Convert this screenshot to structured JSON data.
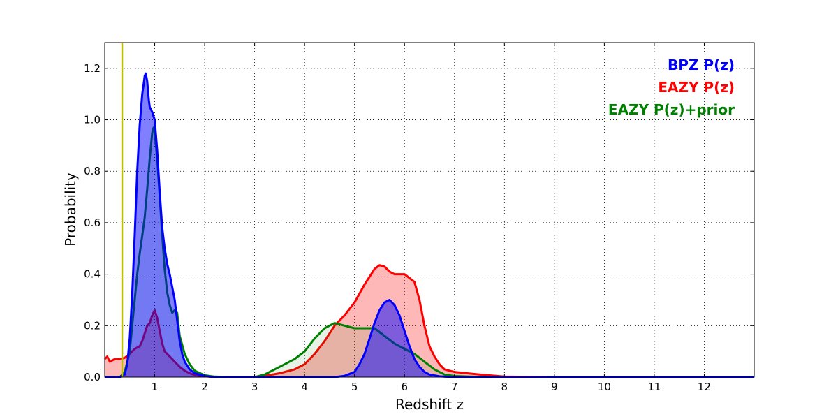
{
  "chart_data": {
    "type": "area",
    "xlabel": "Redshift z",
    "ylabel": "Probability",
    "xlim": [
      0,
      13
    ],
    "ylim": [
      0,
      1.3
    ],
    "x_ticks": [
      1,
      2,
      3,
      4,
      5,
      6,
      7,
      8,
      9,
      10,
      11,
      12
    ],
    "x_tick_labels": [
      "1",
      "2",
      "3",
      "4",
      "5",
      "6",
      "7",
      "8",
      "9",
      "10",
      "11",
      "12"
    ],
    "y_ticks": [
      0,
      0.2,
      0.4,
      0.6,
      0.8,
      1.0,
      1.2
    ],
    "y_tick_labels": [
      "0.0",
      "0.2",
      "0.4",
      "0.6",
      "0.8",
      "1.0",
      "1.2"
    ],
    "grid": true,
    "legend_position": "top-right",
    "vertical_line": {
      "x": 0.35,
      "color": "#bfbf00"
    },
    "series": [
      {
        "name": "EAZY P(z)",
        "color": "#ff0000",
        "fill": "#ff0000",
        "fill_opacity": 0.28,
        "x": [
          0,
          0.05,
          0.1,
          0.15,
          0.2,
          0.3,
          0.4,
          0.5,
          0.6,
          0.7,
          0.75,
          0.8,
          0.85,
          0.9,
          0.95,
          1.0,
          1.05,
          1.1,
          1.15,
          1.2,
          1.3,
          1.4,
          1.5,
          1.6,
          1.7,
          1.8,
          2.0,
          2.2,
          2.5,
          3.0,
          3.2,
          3.5,
          3.8,
          4.0,
          4.2,
          4.4,
          4.6,
          4.8,
          5.0,
          5.2,
          5.4,
          5.5,
          5.6,
          5.7,
          5.8,
          6.0,
          6.2,
          6.3,
          6.4,
          6.5,
          6.6,
          6.7,
          6.8,
          6.9,
          7.0,
          7.5,
          8.0,
          9.0,
          10,
          11,
          12,
          13
        ],
        "values": [
          0.07,
          0.08,
          0.06,
          0.065,
          0.07,
          0.07,
          0.075,
          0.09,
          0.11,
          0.12,
          0.14,
          0.17,
          0.2,
          0.21,
          0.24,
          0.26,
          0.23,
          0.18,
          0.13,
          0.1,
          0.08,
          0.06,
          0.04,
          0.025,
          0.015,
          0.008,
          0.003,
          0.001,
          0.0,
          0.0,
          0.005,
          0.015,
          0.03,
          0.05,
          0.09,
          0.14,
          0.2,
          0.24,
          0.29,
          0.36,
          0.42,
          0.435,
          0.43,
          0.41,
          0.4,
          0.4,
          0.37,
          0.3,
          0.2,
          0.12,
          0.08,
          0.05,
          0.03,
          0.025,
          0.02,
          0.01,
          0.002,
          0.0,
          0.0,
          0.0,
          0.0,
          0.0
        ]
      },
      {
        "name": "EAZY P(z)+prior",
        "color": "#008000",
        "fill": "#008000",
        "fill_opacity": 0.1,
        "x": [
          0,
          0.3,
          0.4,
          0.5,
          0.55,
          0.6,
          0.65,
          0.7,
          0.75,
          0.8,
          0.85,
          0.9,
          0.95,
          0.98,
          1.0,
          1.05,
          1.1,
          1.15,
          1.2,
          1.25,
          1.3,
          1.35,
          1.4,
          1.45,
          1.5,
          1.6,
          1.7,
          1.8,
          2.0,
          2.2,
          2.5,
          3.0,
          3.2,
          3.5,
          3.8,
          4.0,
          4.2,
          4.4,
          4.6,
          4.8,
          5.0,
          5.2,
          5.4,
          5.6,
          5.8,
          6.0,
          6.2,
          6.4,
          6.6,
          6.8,
          7.0,
          7.5,
          8.0,
          13
        ],
        "values": [
          0.0,
          0.0,
          0.02,
          0.1,
          0.2,
          0.3,
          0.4,
          0.48,
          0.55,
          0.62,
          0.73,
          0.85,
          0.95,
          0.97,
          0.95,
          0.85,
          0.7,
          0.55,
          0.42,
          0.33,
          0.28,
          0.25,
          0.26,
          0.25,
          0.16,
          0.09,
          0.05,
          0.025,
          0.007,
          0.002,
          0.0,
          0.0,
          0.01,
          0.04,
          0.07,
          0.1,
          0.15,
          0.19,
          0.21,
          0.2,
          0.19,
          0.19,
          0.19,
          0.16,
          0.13,
          0.11,
          0.09,
          0.06,
          0.03,
          0.01,
          0.004,
          0.001,
          0.0,
          0.0
        ]
      },
      {
        "name": "BPZ P(z)",
        "color": "#0000ff",
        "fill": "#0000ff",
        "fill_opacity": 0.5,
        "x": [
          0,
          0.3,
          0.4,
          0.45,
          0.5,
          0.55,
          0.6,
          0.65,
          0.7,
          0.75,
          0.78,
          0.8,
          0.82,
          0.85,
          0.88,
          0.9,
          0.95,
          1.0,
          1.05,
          1.1,
          1.15,
          1.2,
          1.25,
          1.3,
          1.35,
          1.4,
          1.45,
          1.5,
          1.55,
          1.6,
          1.7,
          1.8,
          2.0,
          2.2,
          2.5,
          4.0,
          4.6,
          4.8,
          5.0,
          5.1,
          5.2,
          5.3,
          5.4,
          5.5,
          5.6,
          5.7,
          5.8,
          5.9,
          6.0,
          6.1,
          6.2,
          6.3,
          6.4,
          6.5,
          6.7,
          7.0,
          13
        ],
        "values": [
          0.0,
          0.0,
          0.01,
          0.05,
          0.15,
          0.32,
          0.55,
          0.8,
          0.98,
          1.1,
          1.14,
          1.17,
          1.18,
          1.15,
          1.08,
          1.05,
          1.03,
          1.0,
          0.88,
          0.72,
          0.58,
          0.5,
          0.44,
          0.4,
          0.35,
          0.3,
          0.22,
          0.14,
          0.09,
          0.06,
          0.03,
          0.015,
          0.004,
          0.0,
          0.0,
          0.0,
          0.0,
          0.005,
          0.02,
          0.05,
          0.09,
          0.15,
          0.21,
          0.26,
          0.29,
          0.3,
          0.28,
          0.24,
          0.18,
          0.12,
          0.07,
          0.04,
          0.02,
          0.01,
          0.003,
          0.0,
          0.0
        ]
      }
    ],
    "legend": [
      {
        "label": "BPZ P(z)",
        "color": "#0000ff"
      },
      {
        "label": "EAZY P(z)",
        "color": "#ff0000"
      },
      {
        "label": "EAZY P(z)+prior",
        "color": "#008000"
      }
    ]
  }
}
